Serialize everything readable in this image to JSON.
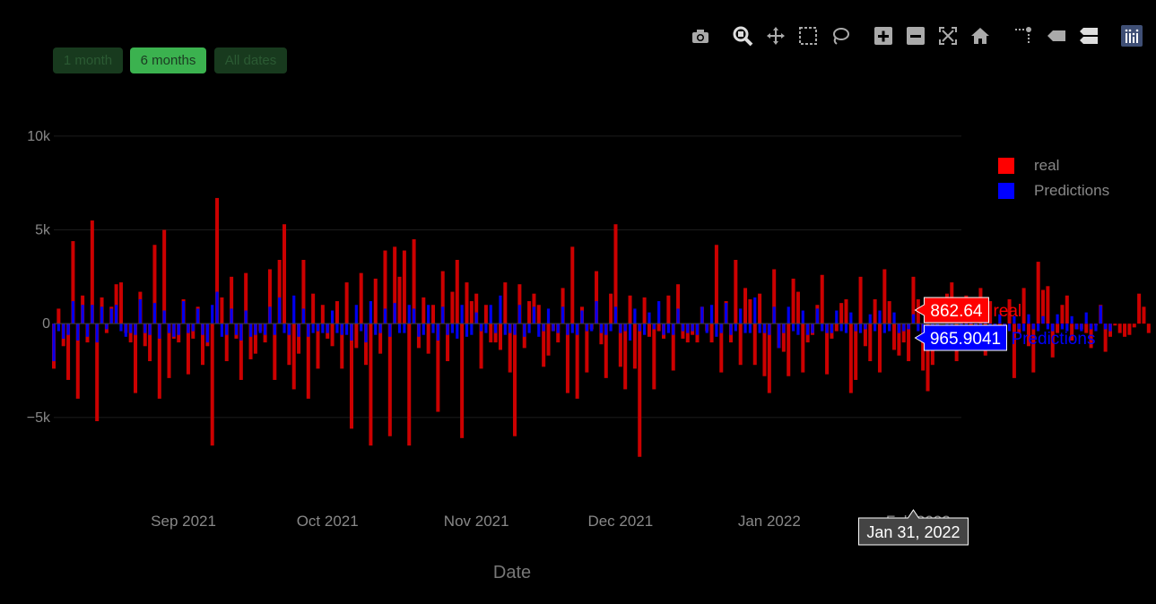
{
  "toolbar": {
    "icons": [
      "camera-icon",
      "zoom-icon",
      "pan-icon",
      "box-select-icon",
      "lasso-select-icon",
      "zoom-in-icon",
      "zoom-out-icon",
      "autoscale-icon",
      "reset-axes-icon",
      "spike-lines-icon",
      "hover-closest-icon",
      "hover-compare-icon",
      "plotly-logo-icon"
    ]
  },
  "range_selector": {
    "buttons": [
      {
        "label": "1 month",
        "active": false
      },
      {
        "label": "6 months",
        "active": true
      },
      {
        "label": "All dates",
        "active": false
      }
    ]
  },
  "colors": {
    "real": "#cc0000",
    "predictions": "#0000ee",
    "background": "#000000",
    "active_button": "#3bb24f",
    "inactive_button": "#183a1e"
  },
  "chart_data": {
    "type": "bar",
    "barmode": "overlay",
    "xlabel": "Date",
    "ylabel": "",
    "ylim": [
      -9500,
      12000
    ],
    "yticks": [
      -5000,
      0,
      5000,
      10000
    ],
    "ytick_labels": [
      "−5k",
      "0",
      "5k",
      "10k"
    ],
    "xlim": [
      "2021-08-05",
      "2022-02-10"
    ],
    "xticks": [
      "2021-09-01",
      "2021-10-01",
      "2021-11-01",
      "2021-12-01",
      "2022-01-01",
      "2022-02-01"
    ],
    "xtick_labels": [
      "Sep 2021",
      "Oct 2021",
      "Nov 2021",
      "Dec 2021",
      "Jan 2022",
      "Feb 2022"
    ],
    "grid": true,
    "legend_position": "top-right",
    "series": [
      {
        "name": "real",
        "color": "#cc0000",
        "x_start": "2021-08-05",
        "values": [
          -2400,
          800,
          -1200,
          -3000,
          4400,
          -4000,
          1500,
          -1000,
          5500,
          -5200,
          1400,
          -500,
          900,
          2100,
          2200,
          -500,
          -1000,
          -3700,
          1700,
          -1200,
          -2000,
          4200,
          -4000,
          5000,
          -2900,
          -800,
          -1000,
          1300,
          -2700,
          -800,
          900,
          -2200,
          -1200,
          -6500,
          6700,
          1400,
          -2000,
          2500,
          -800,
          -3000,
          2700,
          -1900,
          -1600,
          -400,
          -1000,
          2900,
          -3000,
          3400,
          5300,
          -2200,
          -3500,
          -1600,
          3400,
          -4000,
          1600,
          -2400,
          1000,
          -800,
          -1200,
          1200,
          -2400,
          2200,
          -5600,
          -1300,
          2700,
          -2200,
          -6500,
          2400,
          -1600,
          3900,
          -6000,
          4100,
          2500,
          3900,
          -6500,
          4500,
          -1300,
          1400,
          -1600,
          1000,
          -4700,
          2800,
          -2000,
          1700,
          3400,
          -6100,
          2200,
          1200,
          1600,
          -2400,
          1000,
          -1000,
          -1000,
          -1400,
          2200,
          -2600,
          -6000,
          2100,
          -1300,
          1200,
          1600,
          1000,
          -2300,
          -1700,
          -400,
          -1000,
          1900,
          -3700,
          4100,
          -4000,
          900,
          -2600,
          -300,
          2800,
          -1100,
          -2900,
          1600,
          5300,
          -2300,
          -3500,
          1500,
          -2400,
          -7100,
          1400,
          -700,
          -3500,
          -400,
          -800,
          1500,
          -2500,
          2100,
          -800,
          -1000,
          -600,
          -1000,
          900,
          -400,
          -1000,
          4200,
          -2600,
          1200,
          -1000,
          3400,
          -2200,
          1900,
          1300,
          -2200,
          1600,
          -2800,
          -3700,
          2900,
          -1300,
          -1500,
          -2800,
          2400,
          1700,
          -2600,
          -1000,
          -600,
          1000,
          2600,
          -2700,
          -800,
          -400,
          1100,
          1300,
          -3700,
          -3000,
          2500,
          -1200,
          -2000,
          1300,
          -2600,
          2900,
          1200,
          -1400,
          -1700,
          -1000,
          -2000,
          2500,
          1300,
          -2500,
          -3600,
          -2200,
          -400,
          1000,
          1600,
          2200,
          -2000,
          1200,
          1500,
          -400,
          -1100,
          1900,
          -1700,
          1200,
          -800,
          -400,
          -900,
          1300,
          -2900,
          -500,
          1900,
          -1200,
          -2600,
          3300,
          1800,
          2000,
          -1800,
          -500,
          1000,
          1500,
          -900,
          -300,
          -300,
          -500,
          -1300,
          -100,
          1000,
          -1500,
          -700,
          -100,
          -500,
          -700,
          -600,
          -200,
          1600,
          900,
          -500
        ],
        "hover": {
          "label": "real",
          "value": "862.64"
        }
      },
      {
        "name": "Predictions",
        "color": "#0000ee",
        "x_start": "2021-08-05",
        "values": [
          -2000,
          -400,
          -800,
          -600,
          1200,
          -900,
          1000,
          -700,
          1000,
          -1000,
          900,
          -300,
          800,
          1000,
          -400,
          -700,
          -500,
          -600,
          1300,
          -500,
          -600,
          1100,
          -800,
          700,
          -500,
          -700,
          -600,
          1200,
          -500,
          -400,
          800,
          -600,
          -1000,
          1000,
          1700,
          -700,
          -600,
          800,
          -600,
          -900,
          700,
          -700,
          -600,
          -500,
          -600,
          900,
          -600,
          1400,
          -500,
          -600,
          1500,
          -700,
          800,
          -700,
          -500,
          -400,
          -500,
          -500,
          700,
          -500,
          -600,
          -600,
          -900,
          1000,
          -400,
          -1000,
          1200,
          -600,
          -500,
          800,
          -700,
          1100,
          -500,
          -500,
          1000,
          800,
          -700,
          -600,
          1000,
          -500,
          -900,
          900,
          -600,
          -500,
          -800,
          1000,
          -700,
          -600,
          600,
          -400,
          -500,
          1000,
          -500,
          1500,
          -600,
          -500,
          -600,
          1000,
          -700,
          -500,
          900,
          -700,
          -400,
          800,
          -400,
          -500,
          900,
          -600,
          -500,
          -600,
          700,
          -400,
          -400,
          1200,
          -500,
          -600,
          -400,
          900,
          -500,
          -400,
          -900,
          800,
          -400,
          -600,
          600,
          -300,
          1200,
          -600,
          -500,
          -600,
          800,
          -400,
          -500,
          -400,
          -600,
          900,
          -500,
          1000,
          -700,
          -500,
          1100,
          -600,
          -400,
          800,
          -500,
          -500,
          1400,
          -500,
          -500,
          -600,
          900,
          -1300,
          -500,
          900,
          -400,
          -600,
          700,
          -600,
          -500,
          800,
          -400,
          -500,
          -500,
          700,
          -400,
          -500,
          600,
          -400,
          -500,
          -300,
          500,
          -400,
          700,
          -500,
          -400,
          600,
          -500,
          -400,
          -300,
          500,
          -400,
          -1000,
          500,
          -300,
          -400,
          500,
          -300,
          -400,
          600,
          -300,
          -400,
          500,
          -300,
          -400,
          600,
          -300,
          -400,
          500,
          -300,
          -400,
          400,
          -300,
          -400,
          500,
          -300,
          -400,
          400,
          -300,
          -400,
          500,
          -300,
          -400,
          400,
          -300,
          -400,
          600,
          -300,
          -400,
          966,
          -300,
          -400
        ],
        "hover": {
          "label": "Predictions",
          "value": "965.9041"
        }
      }
    ],
    "hover_x_label": "Jan 31, 2022",
    "hover_date": "2022-01-31"
  }
}
